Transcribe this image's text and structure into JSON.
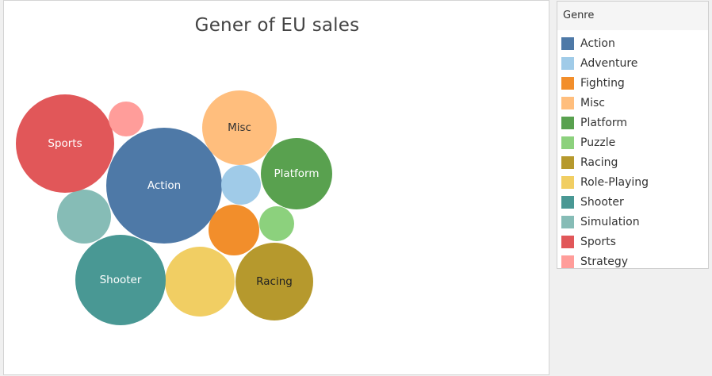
{
  "chart_data": {
    "type": "bubble",
    "title": "Gener of EU sales",
    "legend_title": "Genre",
    "legend_position": "right",
    "series": [
      {
        "name": "Action",
        "label": "Action",
        "color": "#4e79a7",
        "label_color": "#ffffff"
      },
      {
        "name": "Adventure",
        "label": "",
        "color": "#a0cbe8",
        "label_color": "#333333"
      },
      {
        "name": "Fighting",
        "label": "",
        "color": "#f28e2b",
        "label_color": "#333333"
      },
      {
        "name": "Misc",
        "label": "Misc",
        "color": "#ffbe7d",
        "label_color": "#333333"
      },
      {
        "name": "Platform",
        "label": "Platform",
        "color": "#59a14f",
        "label_color": "#ffffff"
      },
      {
        "name": "Puzzle",
        "label": "",
        "color": "#8cd17d",
        "label_color": "#333333"
      },
      {
        "name": "Racing",
        "label": "Racing",
        "color": "#b6992d",
        "label_color": "#222222"
      },
      {
        "name": "Role-Playing",
        "label": "",
        "color": "#f1ce63",
        "label_color": "#333333"
      },
      {
        "name": "Shooter",
        "label": "Shooter",
        "color": "#499894",
        "label_color": "#ffffff"
      },
      {
        "name": "Simulation",
        "label": "",
        "color": "#86bcb6",
        "label_color": "#333333"
      },
      {
        "name": "Sports",
        "label": "Sports",
        "color": "#e15759",
        "label_color": "#ffffff"
      },
      {
        "name": "Strategy",
        "label": "",
        "color": "#ff9d9a",
        "label_color": "#333333"
      }
    ]
  }
}
